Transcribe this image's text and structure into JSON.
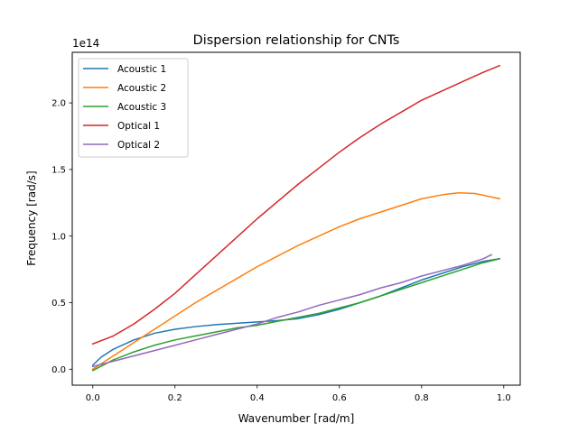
{
  "chart_data": {
    "type": "line",
    "title": "Dispersion relationship for CNTs",
    "xlabel": "Wavenumber [rad/m]",
    "ylabel": "Frequency [rad/s]",
    "y_offset_label": "1e14",
    "y_scale_factor": 100000000000000.0,
    "xlim": [
      -0.05,
      1.04
    ],
    "ylim": [
      -0.12,
      2.38
    ],
    "x_ticks": [
      0.0,
      0.2,
      0.4,
      0.6,
      0.8,
      1.0
    ],
    "x_tick_labels": [
      "0.0",
      "0.2",
      "0.4",
      "0.6",
      "0.8",
      "1.0"
    ],
    "y_ticks": [
      0.0,
      0.5,
      1.0,
      1.5,
      2.0
    ],
    "y_tick_labels": [
      "0.0",
      "0.5",
      "1.0",
      "1.5",
      "2.0"
    ],
    "grid": false,
    "legend_position": "top-left",
    "series": [
      {
        "name": "Acoustic 1",
        "color": "#1f77b4",
        "x": [
          0,
          0.02,
          0.05,
          0.1,
          0.15,
          0.2,
          0.25,
          0.3,
          0.35,
          0.4,
          0.45,
          0.5,
          0.55,
          0.6,
          0.65,
          0.7,
          0.75,
          0.8,
          0.85,
          0.9,
          0.95,
          0.99
        ],
        "y": [
          0.03,
          0.09,
          0.15,
          0.22,
          0.27,
          0.3,
          0.32,
          0.335,
          0.345,
          0.355,
          0.365,
          0.38,
          0.41,
          0.45,
          0.5,
          0.55,
          0.61,
          0.67,
          0.72,
          0.77,
          0.81,
          0.83
        ]
      },
      {
        "name": "Acoustic 2",
        "color": "#ff7f0e",
        "x": [
          0,
          0.05,
          0.1,
          0.15,
          0.2,
          0.25,
          0.3,
          0.35,
          0.4,
          0.45,
          0.5,
          0.55,
          0.6,
          0.65,
          0.7,
          0.75,
          0.8,
          0.85,
          0.89,
          0.93,
          0.96,
          0.99
        ],
        "y": [
          0.0,
          0.1,
          0.2,
          0.3,
          0.4,
          0.5,
          0.59,
          0.68,
          0.77,
          0.85,
          0.93,
          1.0,
          1.07,
          1.13,
          1.18,
          1.23,
          1.28,
          1.31,
          1.325,
          1.32,
          1.3,
          1.28
        ]
      },
      {
        "name": "Acoustic 3",
        "color": "#2ca02c",
        "x": [
          0,
          0.05,
          0.1,
          0.15,
          0.2,
          0.25,
          0.3,
          0.35,
          0.4,
          0.45,
          0.5,
          0.55,
          0.6,
          0.65,
          0.7,
          0.75,
          0.8,
          0.85,
          0.9,
          0.95,
          0.99
        ],
        "y": [
          -0.01,
          0.07,
          0.13,
          0.18,
          0.22,
          0.25,
          0.28,
          0.31,
          0.33,
          0.36,
          0.39,
          0.42,
          0.46,
          0.5,
          0.55,
          0.6,
          0.65,
          0.7,
          0.75,
          0.8,
          0.83
        ]
      },
      {
        "name": "Optical 1",
        "color": "#d62728",
        "x": [
          0,
          0.05,
          0.1,
          0.15,
          0.2,
          0.25,
          0.3,
          0.35,
          0.4,
          0.45,
          0.5,
          0.55,
          0.6,
          0.65,
          0.7,
          0.75,
          0.8,
          0.85,
          0.9,
          0.95,
          0.99
        ],
        "y": [
          0.19,
          0.25,
          0.34,
          0.45,
          0.57,
          0.71,
          0.85,
          0.99,
          1.13,
          1.26,
          1.39,
          1.51,
          1.63,
          1.74,
          1.84,
          1.93,
          2.02,
          2.09,
          2.16,
          2.23,
          2.28
        ]
      },
      {
        "name": "Optical 2",
        "color": "#9467bd",
        "x": [
          0,
          0.05,
          0.1,
          0.15,
          0.2,
          0.25,
          0.3,
          0.35,
          0.4,
          0.45,
          0.5,
          0.55,
          0.6,
          0.65,
          0.7,
          0.75,
          0.8,
          0.85,
          0.9,
          0.95,
          0.97
        ],
        "y": [
          0.02,
          0.06,
          0.1,
          0.14,
          0.18,
          0.22,
          0.26,
          0.3,
          0.34,
          0.39,
          0.43,
          0.48,
          0.52,
          0.56,
          0.61,
          0.65,
          0.7,
          0.74,
          0.78,
          0.83,
          0.86
        ]
      }
    ]
  }
}
